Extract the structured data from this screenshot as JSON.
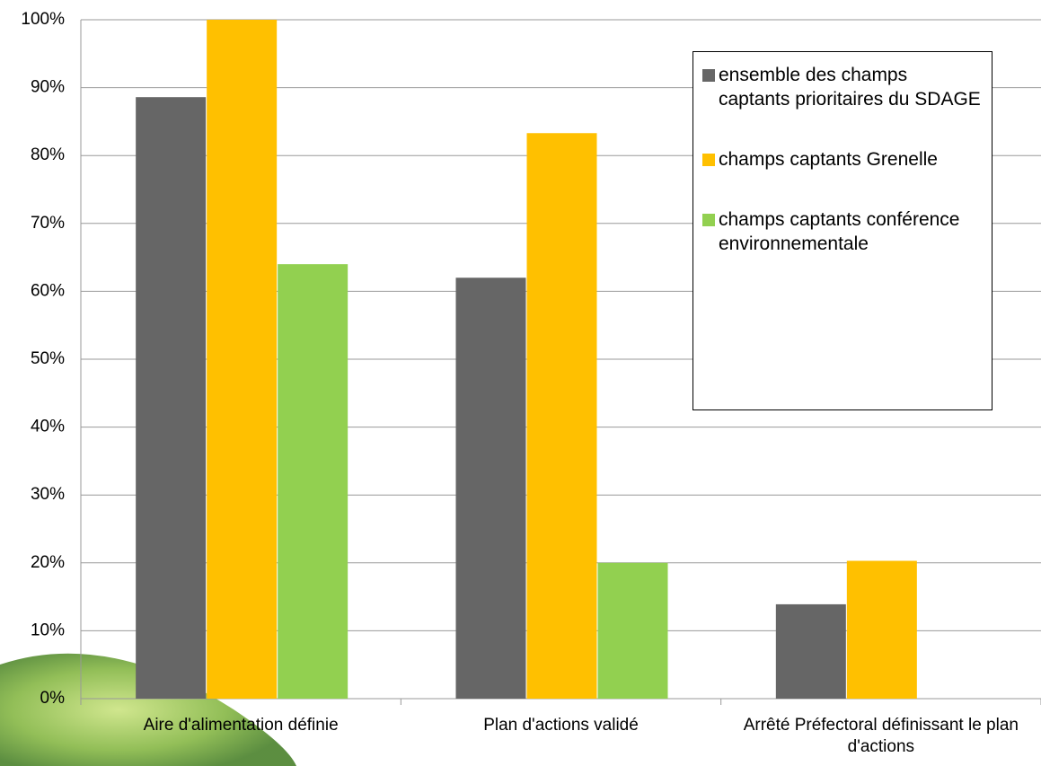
{
  "chart_data": {
    "type": "bar",
    "categories": [
      "Aire d'alimentation définie",
      "Plan d'actions validé",
      "Arrêté Préfectoral définissant le plan d'actions"
    ],
    "series": [
      {
        "name": "ensemble des champs captants prioritaires du SDAGE",
        "color": "#666666",
        "values": [
          88.6,
          62,
          13.9
        ]
      },
      {
        "name": "champs captants Grenelle",
        "color": "#ffc000",
        "values": [
          100,
          83.3,
          20.3
        ]
      },
      {
        "name": "champs captants conférence environnementale",
        "color": "#92d050",
        "values": [
          64,
          20,
          0
        ]
      }
    ],
    "ylim": [
      0,
      100
    ],
    "yticks": [
      {
        "value": 0,
        "label": "0%"
      },
      {
        "value": 10,
        "label": "10%"
      },
      {
        "value": 20,
        "label": "20%"
      },
      {
        "value": 30,
        "label": "30%"
      },
      {
        "value": 40,
        "label": "40%"
      },
      {
        "value": 50,
        "label": "50%"
      },
      {
        "value": 60,
        "label": "60%"
      },
      {
        "value": 70,
        "label": "70%"
      },
      {
        "value": 80,
        "label": "80%"
      },
      {
        "value": 90,
        "label": "90%"
      },
      {
        "value": 100,
        "label": "100%"
      }
    ],
    "grid": true,
    "legend": "upper right"
  }
}
